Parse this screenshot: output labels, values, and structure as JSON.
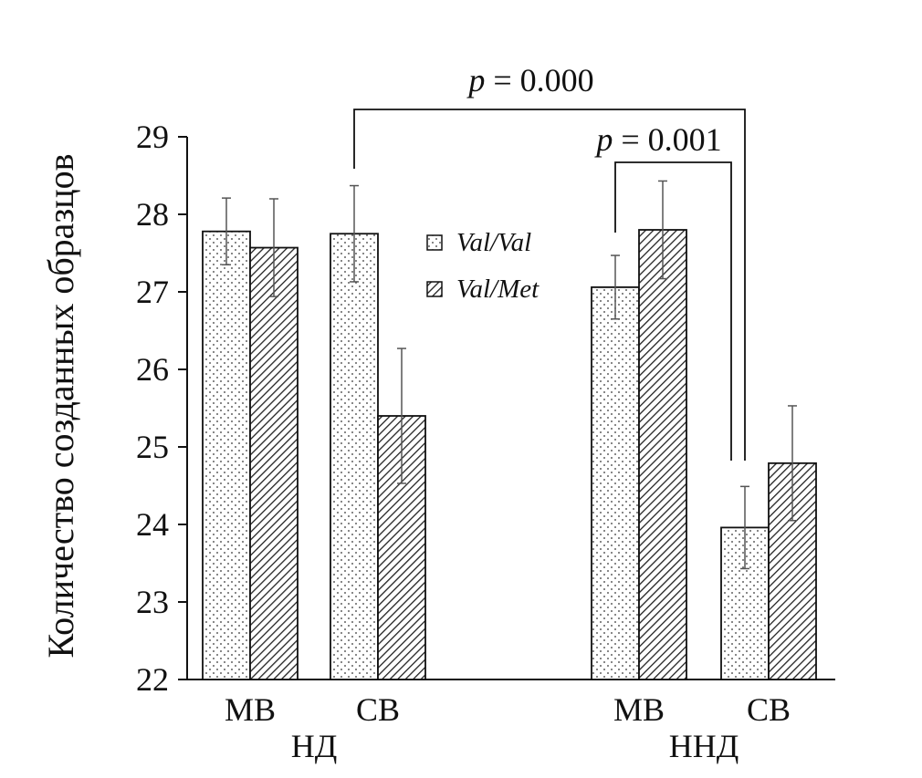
{
  "chart_data": {
    "type": "bar",
    "ylabel": "Количество созданных образцов",
    "ylim": [
      22,
      29
    ],
    "yticks": [
      22,
      23,
      24,
      25,
      26,
      27,
      28,
      29
    ],
    "groups": [
      {
        "label": "НД",
        "categories": [
          "МВ",
          "СВ"
        ]
      },
      {
        "label": "ННД",
        "categories": [
          "МВ",
          "СВ"
        ]
      }
    ],
    "series": [
      {
        "name": "Val/Val",
        "pattern": "dots",
        "values": [
          27.78,
          27.75,
          27.06,
          23.96
        ],
        "errors": [
          0.43,
          0.62,
          0.41,
          0.53
        ]
      },
      {
        "name": "Val/Met",
        "pattern": "hatch",
        "values": [
          27.57,
          25.4,
          27.8,
          24.79
        ],
        "errors": [
          0.63,
          0.87,
          0.63,
          0.74
        ]
      }
    ],
    "annotations": [
      {
        "p_symbol": "p",
        "text": "= 0.000",
        "from": "НД СВ Val/Val",
        "to": "ННД СВ Val/Val"
      },
      {
        "p_symbol": "p",
        "text": "= 0.001",
        "from": "ННД МВ Val/Val",
        "to": "ННД СВ Val/Val"
      }
    ],
    "legend_position": "center-top"
  }
}
